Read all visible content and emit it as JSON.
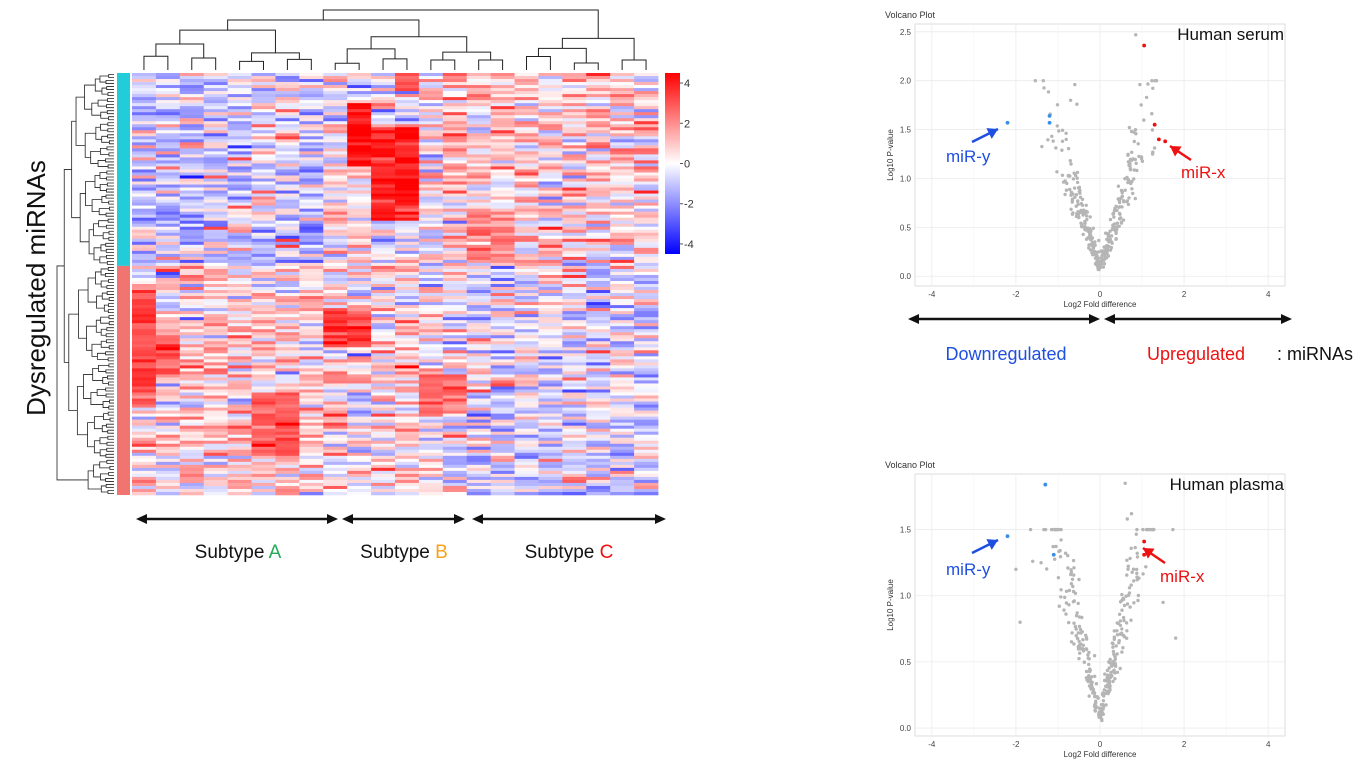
{
  "colors": {
    "teal": "#22ccd8",
    "salmon": "#f07470",
    "red": "#ff0000",
    "blue": "#1f4fe0",
    "green": "#22aa55",
    "orange": "#f7a21a",
    "grey_point": "#b5b5b5",
    "blue_point": "#3a8ee8",
    "red_point": "#ee1111"
  },
  "heatmap": {
    "ylabel": "Dysregulated miRNAs",
    "subtypes": [
      {
        "prefix": "Subtype ",
        "letter": "A",
        "color": "#22aa55"
      },
      {
        "prefix": "Subtype ",
        "letter": "B",
        "color": "#f7a21a"
      },
      {
        "prefix": "Subtype ",
        "letter": "C",
        "color": "#ee1111"
      }
    ],
    "n_columns": 22,
    "n_rows": 140,
    "colorbar_ticks": [
      "4",
      "2",
      "0",
      "-2",
      "-4"
    ]
  },
  "chart_data": [
    {
      "type": "heatmap",
      "ylabel": "Dysregulated miRNAs",
      "value_range": [
        -4.5,
        4.5
      ],
      "colorbar_ticks": [
        4,
        2,
        0,
        -2,
        -4
      ],
      "column_groups": [
        {
          "name": "Subtype A",
          "columns": 8
        },
        {
          "name": "Subtype B",
          "columns": 5
        },
        {
          "name": "Subtype C",
          "columns": 9
        }
      ],
      "row_groups": [
        {
          "color": "#22ccd8",
          "rows": 64
        },
        {
          "color": "#f07470",
          "rows": 76
        }
      ]
    },
    {
      "type": "scatter",
      "title": "Volcano Plot",
      "label": "Human serum",
      "xlabel": "Log2 Fold difference",
      "ylabel": "Log10 P-value",
      "xlim": [
        -4.4,
        4.4
      ],
      "ylim": [
        -0.1,
        2.58
      ],
      "xticks": [
        -4,
        -2,
        0,
        2,
        4
      ],
      "yticks": [
        0.0,
        0.5,
        1.0,
        1.5,
        2.0,
        2.5
      ],
      "highlighted_down": [
        [
          -2.2,
          1.57
        ],
        [
          -1.2,
          1.64
        ],
        [
          -1.2,
          1.57
        ]
      ],
      "highlighted_up": [
        [
          1.05,
          2.36
        ],
        [
          1.3,
          1.55
        ],
        [
          1.4,
          1.4
        ],
        [
          1.55,
          1.38
        ]
      ],
      "annotations": [
        {
          "text": "miR-y",
          "color": "#1f4fe0"
        },
        {
          "text": "miR-x",
          "color": "#ee1111"
        }
      ]
    },
    {
      "type": "scatter",
      "title": "Volcano Plot",
      "label": "Human plasma",
      "xlabel": "Log2 Fold difference",
      "ylabel": "Log10 P-value",
      "xlim": [
        -4.4,
        4.4
      ],
      "ylim": [
        -0.06,
        1.92
      ],
      "xticks": [
        -4,
        -2,
        0,
        2,
        4
      ],
      "yticks": [
        0.0,
        0.5,
        1.0,
        1.5
      ],
      "highlighted_down": [
        [
          -2.2,
          1.45
        ],
        [
          -1.3,
          1.84
        ],
        [
          -1.1,
          1.31
        ]
      ],
      "highlighted_up": [
        [
          1.05,
          1.41
        ],
        [
          1.05,
          1.31
        ]
      ],
      "annotations": [
        {
          "text": "miR-y",
          "color": "#1f4fe0"
        },
        {
          "text": "miR-x",
          "color": "#ee1111"
        }
      ]
    }
  ],
  "legend": {
    "down": "Downregulated",
    "up": "Upregulated",
    "suffix": ": miRNAs"
  }
}
